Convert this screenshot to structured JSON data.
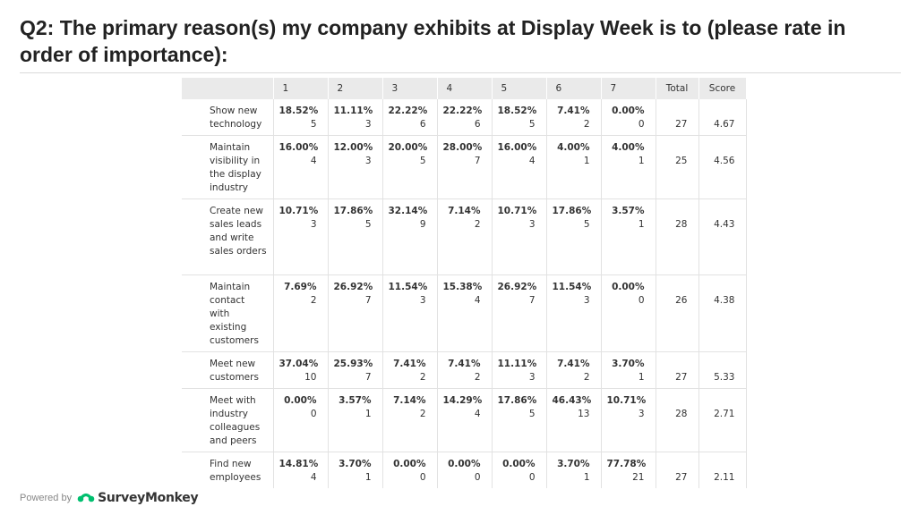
{
  "title": "Q2: The primary reason(s) my company exhibits at Display Week is to (please rate in order of importance):",
  "table": {
    "headers": [
      "",
      "1",
      "2",
      "3",
      "4",
      "5",
      "6",
      "7",
      "Total",
      "Score"
    ],
    "rows": [
      {
        "label": "Show new technology",
        "cells": [
          [
            "18.52%",
            "5"
          ],
          [
            "11.11%",
            "3"
          ],
          [
            "22.22%",
            "6"
          ],
          [
            "22.22%",
            "6"
          ],
          [
            "18.52%",
            "5"
          ],
          [
            "7.41%",
            "2"
          ],
          [
            "0.00%",
            "0"
          ]
        ],
        "total": "27",
        "score": "4.67"
      },
      {
        "label": "Maintain visibility in the display industry",
        "cells": [
          [
            "16.00%",
            "4"
          ],
          [
            "12.00%",
            "3"
          ],
          [
            "20.00%",
            "5"
          ],
          [
            "28.00%",
            "7"
          ],
          [
            "16.00%",
            "4"
          ],
          [
            "4.00%",
            "1"
          ],
          [
            "4.00%",
            "1"
          ]
        ],
        "total": "25",
        "score": "4.56"
      },
      {
        "label": "Create new sales leads and write sales orders",
        "cells": [
          [
            "10.71%",
            "3"
          ],
          [
            "17.86%",
            "5"
          ],
          [
            "32.14%",
            "9"
          ],
          [
            "7.14%",
            "2"
          ],
          [
            "10.71%",
            "3"
          ],
          [
            "17.86%",
            "5"
          ],
          [
            "3.57%",
            "1"
          ]
        ],
        "total": "28",
        "score": "4.43"
      },
      {
        "label": "Maintain contact with existing customers",
        "cells": [
          [
            "7.69%",
            "2"
          ],
          [
            "26.92%",
            "7"
          ],
          [
            "11.54%",
            "3"
          ],
          [
            "15.38%",
            "4"
          ],
          [
            "26.92%",
            "7"
          ],
          [
            "11.54%",
            "3"
          ],
          [
            "0.00%",
            "0"
          ]
        ],
        "total": "26",
        "score": "4.38"
      },
      {
        "label": "Meet new customers",
        "cells": [
          [
            "37.04%",
            "10"
          ],
          [
            "25.93%",
            "7"
          ],
          [
            "7.41%",
            "2"
          ],
          [
            "7.41%",
            "2"
          ],
          [
            "11.11%",
            "3"
          ],
          [
            "7.41%",
            "2"
          ],
          [
            "3.70%",
            "1"
          ]
        ],
        "total": "27",
        "score": "5.33"
      },
      {
        "label": "Meet with industry colleagues and peers",
        "cells": [
          [
            "0.00%",
            "0"
          ],
          [
            "3.57%",
            "1"
          ],
          [
            "7.14%",
            "2"
          ],
          [
            "14.29%",
            "4"
          ],
          [
            "17.86%",
            "5"
          ],
          [
            "46.43%",
            "13"
          ],
          [
            "10.71%",
            "3"
          ]
        ],
        "total": "28",
        "score": "2.71"
      },
      {
        "label": "Find new employees",
        "cells": [
          [
            "14.81%",
            "4"
          ],
          [
            "3.70%",
            "1"
          ],
          [
            "0.00%",
            "0"
          ],
          [
            "0.00%",
            "0"
          ],
          [
            "0.00%",
            "0"
          ],
          [
            "3.70%",
            "1"
          ],
          [
            "77.78%",
            "21"
          ]
        ],
        "total": "27",
        "score": "2.11"
      }
    ]
  },
  "footer": {
    "powered_by": "Powered by",
    "brand": "SurveyMonkey",
    "logo_icon": "surveymonkey-logo-icon",
    "logo_color": "#00bf6f"
  }
}
